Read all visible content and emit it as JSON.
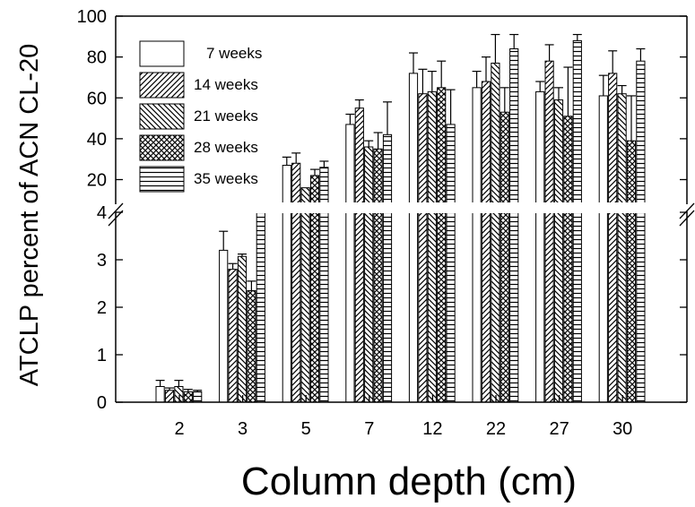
{
  "chart_data": {
    "type": "bar",
    "xlabel": "Column depth (cm)",
    "ylabel": "ATCLP percent of ACN CL-20",
    "categories": [
      "2",
      "3",
      "5",
      "7",
      "12",
      "22",
      "27",
      "30"
    ],
    "y_axis_break": true,
    "ylim_lower": [
      0,
      4
    ],
    "ylim_upper": [
      4,
      100
    ],
    "yticks_lower": [
      "0",
      "1",
      "2",
      "3",
      "4"
    ],
    "yticks_upper": [
      "20",
      "40",
      "60",
      "80",
      "100"
    ],
    "legend_position": "top-left",
    "series": [
      {
        "name": "7 weeks",
        "pattern": "open",
        "values": [
          0.33,
          3.2,
          27,
          47,
          72,
          65,
          63,
          61
        ],
        "errors": [
          0.13,
          0.4,
          4,
          5,
          10,
          8,
          5,
          10
        ]
      },
      {
        "name": "14 weeks",
        "pattern": "diagonal-up",
        "values": [
          0.25,
          2.8,
          28,
          55,
          62,
          68,
          78,
          72
        ],
        "errors": [
          0.05,
          0.12,
          5,
          4,
          12,
          12,
          8,
          11
        ]
      },
      {
        "name": "21 weeks",
        "pattern": "diagonal-down",
        "values": [
          0.33,
          3.07,
          16,
          36,
          63,
          77,
          59,
          62
        ],
        "errors": [
          0.13,
          0.05,
          0,
          3,
          10,
          14,
          6,
          4
        ]
      },
      {
        "name": "28 weeks",
        "pattern": "crosshatch",
        "values": [
          0.22,
          2.35,
          22,
          35,
          65,
          53,
          51,
          39
        ],
        "errors": [
          0.05,
          0.2,
          3,
          8,
          13,
          12,
          24,
          22
        ]
      },
      {
        "name": "35 weeks",
        "pattern": "horizontal",
        "values": [
          0.22,
          5.5,
          26,
          42,
          47,
          84,
          88,
          78
        ],
        "errors": [
          0.03,
          3,
          3,
          16,
          17,
          7,
          3,
          6
        ]
      }
    ]
  }
}
